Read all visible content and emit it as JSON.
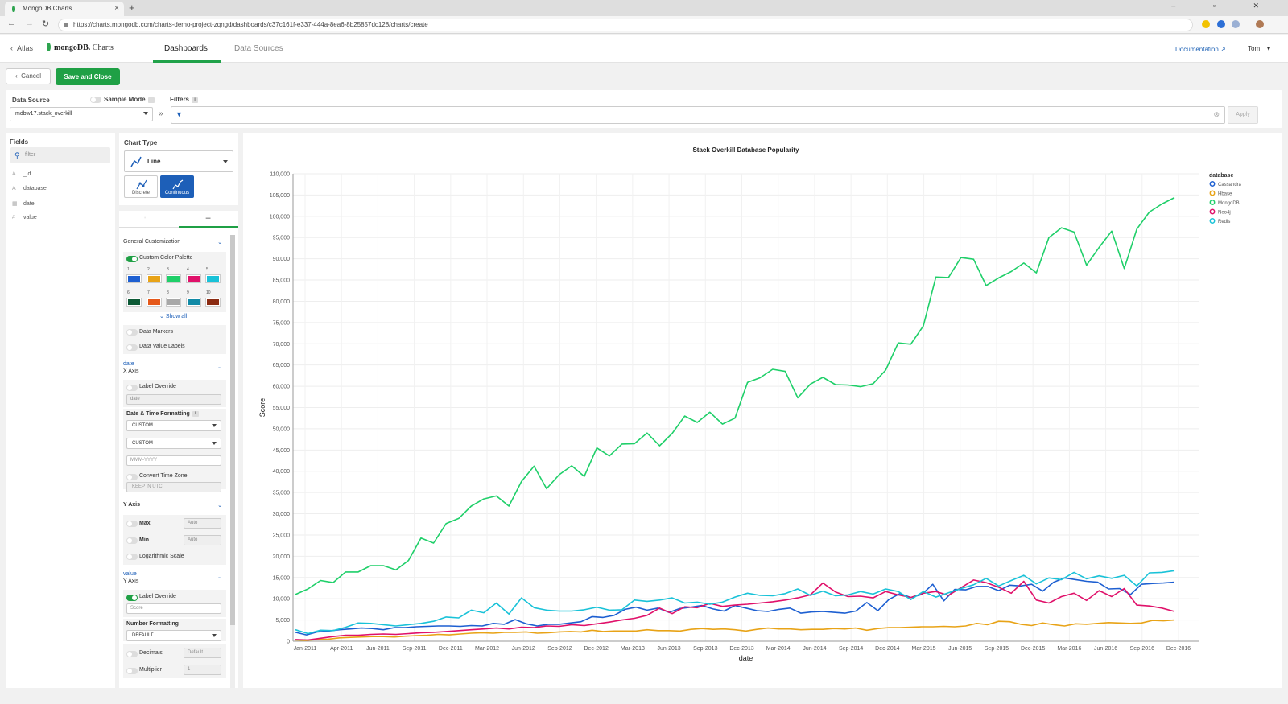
{
  "browser": {
    "tab_title": "MongoDB Charts",
    "new_tab": "+",
    "window_controls": "– ▫ ✕",
    "url": "https://charts.mongodb.com/charts-demo-project-zqngd/dashboards/c37c161f-e337-444a-8ea6-8b25857dc128/charts/create"
  },
  "app": {
    "back_label": "Atlas",
    "logo_brand": "mongoDB.",
    "logo_product": "Charts",
    "tabs": [
      "Dashboards",
      "Data Sources"
    ],
    "documentation": "Documentation",
    "user": "Tom"
  },
  "actions": {
    "cancel": "Cancel",
    "save": "Save and Close"
  },
  "datasource": {
    "label": "Data Source",
    "sample_mode": "Sample Mode",
    "value": "mdbw17.stack_overkill",
    "filters_label": "Filters",
    "apply": "Apply"
  },
  "fields": {
    "title": "Fields",
    "search_placeholder": "filter",
    "items": [
      {
        "type": "A",
        "name": "_id"
      },
      {
        "type": "A",
        "name": "database"
      },
      {
        "type": "▦",
        "name": "date"
      },
      {
        "type": "#",
        "name": "value"
      }
    ]
  },
  "chart_type": {
    "label": "Chart Type",
    "selected": "Line",
    "subtypes": [
      "Discrete",
      "Continuous"
    ]
  },
  "customization": {
    "general": "General Customization",
    "custom_palette": "Custom Color Palette",
    "palette": [
      "#1d5fd1",
      "#e8a317",
      "#1fcf69",
      "#e0116a",
      "#19c2d8",
      "#0d5a36",
      "#e5581a",
      "#a8a8a8",
      "#118aa6",
      "#8b2b12"
    ],
    "palette_numbers": [
      "1",
      "2",
      "3",
      "4",
      "5",
      "6",
      "7",
      "8",
      "9",
      "10"
    ],
    "show_all": "Show all",
    "data_markers": "Data Markers",
    "data_value_labels": "Data Value Labels",
    "x_field": "date",
    "x_axis": "X Axis",
    "label_override": "Label Override",
    "x_label_placeholder": "date",
    "datetime_formatting": "Date & Time Formatting",
    "format1": "CUSTOM",
    "format2": "CUSTOM",
    "format_pattern": "MMM-YYYY",
    "convert_tz": "Convert Time Zone",
    "tz_value": "KEEP IN UTC",
    "y_axis_section": "Y Axis",
    "max": "Max",
    "min": "Min",
    "auto": "Auto",
    "log_scale": "Logarithmic Scale",
    "y_field": "value",
    "y_axis": "Y Axis",
    "y_label_override": "Label Override",
    "y_label_value": "Score",
    "number_formatting": "Number Formatting",
    "number_format": "DEFAULT",
    "decimals": "Decimals",
    "decimals_value": "Default",
    "multiplier": "Multiplier",
    "multiplier_value": "1"
  },
  "chart_data": {
    "type": "line",
    "title": "Stack Overkill Database Popularity",
    "xlabel": "date",
    "ylabel": "Score",
    "ylim": [
      0,
      110000
    ],
    "yticks": [
      0,
      5000,
      10000,
      15000,
      20000,
      25000,
      30000,
      35000,
      40000,
      45000,
      50000,
      55000,
      60000,
      65000,
      70000,
      75000,
      80000,
      85000,
      90000,
      95000,
      100000,
      105000,
      110000
    ],
    "ytick_labels": [
      "0",
      "5,000",
      "10,000",
      "15,000",
      "20,000",
      "25,000",
      "30,000",
      "35,000",
      "40,000",
      "45,000",
      "50,000",
      "55,000",
      "60,000",
      "65,000",
      "70,000",
      "75,000",
      "80,000",
      "85,000",
      "90,000",
      "95,000",
      "100,000",
      "105,000",
      "110,000"
    ],
    "xtick_labels": [
      "Jan-2011",
      "Apr-2011",
      "Jun-2011",
      "Sep-2011",
      "Dec-2011",
      "Mar-2012",
      "Jun-2012",
      "Sep-2012",
      "Dec-2012",
      "Mar-2013",
      "Jun-2013",
      "Sep-2013",
      "Dec-2013",
      "Mar-2014",
      "Jun-2014",
      "Sep-2014",
      "Dec-2014",
      "Mar-2015",
      "Jun-2015",
      "Sep-2015",
      "Dec-2015",
      "Mar-2016",
      "Jun-2016",
      "Sep-2016",
      "Dec-2016"
    ],
    "x_start": "Jan-2011",
    "x_end": "Dec-2016",
    "grid": true,
    "legend_title": "database",
    "legend_position": "right",
    "series": [
      {
        "name": "Cassandra",
        "color": "#1d5fd1",
        "values": [
          2100,
          1500,
          2200,
          2400,
          2700,
          2900,
          3100,
          3000,
          2700,
          3200,
          3200,
          3400,
          3500,
          3600,
          3600,
          3500,
          3700,
          3600,
          4200,
          4000,
          5100,
          4100,
          3600,
          4000,
          4000,
          4300,
          4600,
          5800,
          5600,
          6100,
          7500,
          8000,
          7300,
          7800,
          6800,
          7700,
          8000,
          8400,
          7600,
          7100,
          8400,
          7800,
          7200,
          7000,
          7500,
          7800,
          6600,
          6900,
          7000,
          6800,
          6600,
          7100,
          9100,
          7200,
          9800,
          11200,
          10300,
          11000,
          13400,
          9500,
          12200,
          12100,
          12900,
          12900,
          11900,
          13200,
          13000,
          13400,
          11800,
          13900,
          14900,
          14500,
          14100,
          13900,
          12300,
          12400,
          11000,
          13400,
          13600,
          13700,
          13900
        ]
      },
      {
        "name": "Hbase",
        "color": "#e8a317",
        "values": [
          300,
          200,
          400,
          500,
          800,
          900,
          1000,
          1100,
          1100,
          1000,
          1200,
          1300,
          1400,
          1600,
          1500,
          1700,
          1900,
          2000,
          1900,
          2100,
          2100,
          2200,
          1900,
          2000,
          2200,
          2300,
          2200,
          2600,
          2300,
          2400,
          2400,
          2400,
          2700,
          2500,
          2500,
          2400,
          2800,
          3000,
          2800,
          2900,
          2700,
          2400,
          2800,
          3100,
          2900,
          2900,
          2700,
          2800,
          2800,
          3000,
          2900,
          3100,
          2600,
          3000,
          3200,
          3200,
          3300,
          3400,
          3400,
          3500,
          3400,
          3600,
          4200,
          3900,
          4700,
          4600,
          4000,
          3700,
          4300,
          3900,
          3600,
          4100,
          4000,
          4200,
          4400,
          4300,
          4200,
          4300,
          4900,
          4800,
          5000
        ]
      },
      {
        "name": "MongoDB",
        "color": "#1fcf69",
        "values": [
          11000,
          12300,
          14300,
          13800,
          16300,
          16300,
          17800,
          17800,
          16800,
          19000,
          24300,
          23100,
          27700,
          28900,
          31800,
          33500,
          34200,
          31800,
          37600,
          41200,
          35900,
          39200,
          41300,
          38800,
          45500,
          43600,
          46400,
          46500,
          49000,
          46000,
          48900,
          53000,
          51500,
          53900,
          51100,
          52500,
          60900,
          62000,
          64000,
          63500,
          57300,
          60500,
          62100,
          60400,
          60300,
          59900,
          60600,
          63800,
          70200,
          69900,
          74200,
          85700,
          85600,
          90300,
          89900,
          83700,
          85500,
          87000,
          89000,
          86700,
          95000,
          97300,
          96300,
          88500,
          92700,
          96500,
          87700,
          97000,
          101000,
          102900,
          104400
        ]
      },
      {
        "name": "Neo4j",
        "color": "#e0116a",
        "values": [
          400,
          300,
          700,
          1100,
          1400,
          1400,
          1600,
          1700,
          1600,
          1800,
          2000,
          2100,
          2300,
          2500,
          2700,
          2900,
          3100,
          2900,
          3300,
          3200,
          3600,
          3500,
          3900,
          3700,
          4100,
          4500,
          5000,
          5400,
          6100,
          7800,
          6500,
          8100,
          7900,
          8900,
          8200,
          8500,
          8700,
          9000,
          9300,
          9700,
          10200,
          10900,
          13700,
          11600,
          10500,
          10600,
          10200,
          11700,
          10900,
          10300,
          11300,
          11700,
          10800,
          12600,
          14400,
          13800,
          12700,
          11300,
          14100,
          9700,
          9000,
          10500,
          11300,
          9600,
          11900,
          10500,
          12400,
          8500,
          8300,
          7800,
          7000
        ]
      },
      {
        "name": "Redis",
        "color": "#19c2d8",
        "values": [
          2700,
          1800,
          2600,
          2500,
          3300,
          4300,
          4200,
          3900,
          3600,
          3900,
          4200,
          4700,
          5700,
          5500,
          7300,
          6700,
          9000,
          6400,
          10200,
          7900,
          7300,
          7100,
          7100,
          7400,
          8000,
          7300,
          7400,
          9700,
          9400,
          9700,
          10200,
          9000,
          9200,
          8700,
          9200,
          10400,
          11300,
          10800,
          10700,
          11200,
          12300,
          10800,
          11800,
          10700,
          10900,
          11700,
          11100,
          12300,
          11700,
          9800,
          11700,
          10400,
          11400,
          12400,
          13300,
          14800,
          13000,
          14300,
          15500,
          13500,
          14900,
          14500,
          16200,
          14700,
          15400,
          14800,
          15500,
          13000,
          16100,
          16200,
          16600
        ]
      }
    ]
  }
}
